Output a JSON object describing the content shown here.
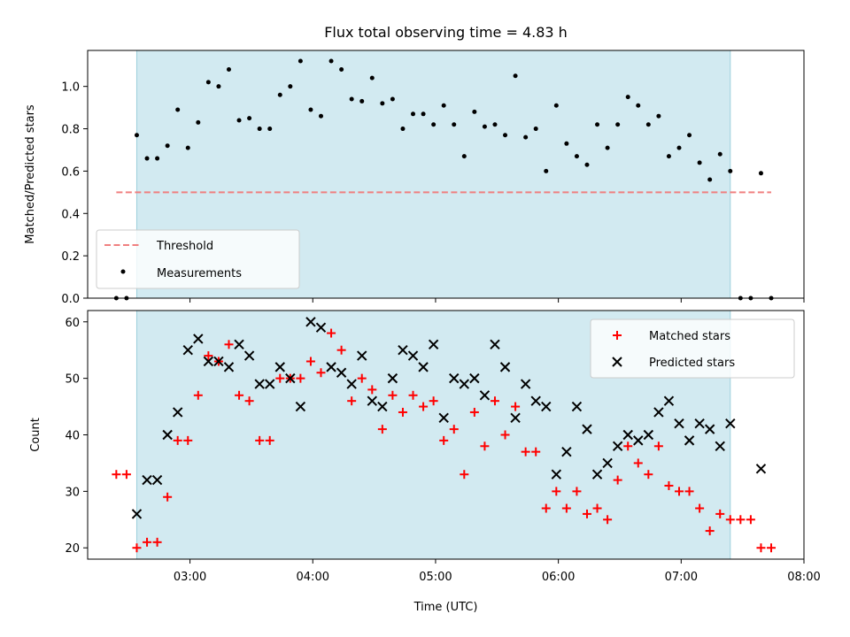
{
  "chart_data": [
    {
      "type": "scatter",
      "title": "Flux total observing time = 4.83 h",
      "ylabel": "Matched/Predicted stars",
      "xlim": [
        "02:10",
        "08:00"
      ],
      "ylim": [
        0,
        1.17
      ],
      "y_ticks": [
        "0.0",
        "0.2",
        "0.4",
        "0.6",
        "0.8",
        "1.0"
      ],
      "legend_location": "lower left",
      "shaded_interval": {
        "x": [
          "02:34",
          "07:24"
        ],
        "color": "#add8e6"
      },
      "threshold": {
        "name": "Threshold",
        "y": 0.5,
        "x": [
          "02:24",
          "07:44"
        ],
        "color": "#f08080",
        "style": "dashed"
      },
      "series": [
        {
          "name": "Measurements",
          "marker": "dot",
          "color": "#000000",
          "x": [
            "02:24",
            "02:29",
            "02:34",
            "02:39",
            "02:44",
            "02:49",
            "02:54",
            "02:59",
            "03:04",
            "03:09",
            "03:14",
            "03:19",
            "03:24",
            "03:29",
            "03:34",
            "03:39",
            "03:44",
            "03:49",
            "03:54",
            "03:59",
            "04:04",
            "04:09",
            "04:14",
            "04:19",
            "04:24",
            "04:29",
            "04:34",
            "04:39",
            "04:44",
            "04:49",
            "04:54",
            "04:59",
            "05:04",
            "05:09",
            "05:14",
            "05:19",
            "05:24",
            "05:29",
            "05:34",
            "05:39",
            "05:44",
            "05:49",
            "05:54",
            "05:59",
            "06:04",
            "06:09",
            "06:14",
            "06:19",
            "06:24",
            "06:29",
            "06:34",
            "06:39",
            "06:44",
            "06:49",
            "06:54",
            "06:59",
            "07:04",
            "07:09",
            "07:14",
            "07:19",
            "07:24",
            "07:29",
            "07:34",
            "07:39",
            "07:44"
          ],
          "y": [
            0,
            0,
            0.77,
            0.66,
            0.66,
            0.72,
            0.89,
            0.71,
            0.83,
            1.02,
            1.0,
            1.08,
            0.84,
            0.85,
            0.8,
            0.8,
            0.96,
            1.0,
            1.12,
            0.89,
            0.86,
            1.12,
            1.08,
            0.94,
            0.93,
            1.04,
            0.92,
            0.94,
            0.8,
            0.87,
            0.87,
            0.82,
            0.91,
            0.82,
            0.67,
            0.88,
            0.81,
            0.82,
            0.77,
            1.05,
            0.76,
            0.8,
            0.6,
            0.91,
            0.73,
            0.67,
            0.63,
            0.82,
            0.71,
            0.82,
            0.95,
            0.91,
            0.82,
            0.86,
            0.67,
            0.71,
            0.77,
            0.64,
            0.56,
            0.68,
            0.6,
            0,
            0,
            0.59,
            0
          ]
        }
      ]
    },
    {
      "type": "scatter",
      "xlabel": "Time (UTC)",
      "ylabel": "Count",
      "xlim": [
        "02:10",
        "08:00"
      ],
      "ylim": [
        18,
        62
      ],
      "x_ticks": [
        "03:00",
        "04:00",
        "05:00",
        "06:00",
        "07:00",
        "08:00"
      ],
      "y_ticks": [
        "20",
        "30",
        "40",
        "50",
        "60"
      ],
      "legend_location": "upper right",
      "shaded_interval": {
        "x": [
          "02:34",
          "07:24"
        ],
        "color": "#add8e6"
      },
      "series": [
        {
          "name": "Matched stars",
          "marker": "plus",
          "color": "#ff0000",
          "x": [
            "02:24",
            "02:29",
            "02:34",
            "02:39",
            "02:44",
            "02:49",
            "02:54",
            "02:59",
            "03:04",
            "03:09",
            "03:14",
            "03:19",
            "03:24",
            "03:29",
            "03:34",
            "03:39",
            "03:44",
            "03:49",
            "03:54",
            "03:59",
            "04:04",
            "04:09",
            "04:14",
            "04:19",
            "04:24",
            "04:29",
            "04:34",
            "04:39",
            "04:44",
            "04:49",
            "04:54",
            "04:59",
            "05:04",
            "05:09",
            "05:14",
            "05:19",
            "05:24",
            "05:29",
            "05:34",
            "05:39",
            "05:44",
            "05:49",
            "05:54",
            "05:59",
            "06:04",
            "06:09",
            "06:14",
            "06:19",
            "06:24",
            "06:29",
            "06:34",
            "06:39",
            "06:44",
            "06:49",
            "06:54",
            "06:59",
            "07:04",
            "07:09",
            "07:14",
            "07:19",
            "07:24",
            "07:29",
            "07:34",
            "07:39",
            "07:44"
          ],
          "y": [
            33,
            33,
            20,
            21,
            21,
            29,
            39,
            39,
            47,
            54,
            53,
            56,
            47,
            46,
            39,
            39,
            50,
            50,
            50,
            53,
            51,
            58,
            55,
            46,
            50,
            48,
            41,
            47,
            44,
            47,
            45,
            46,
            39,
            41,
            33,
            44,
            38,
            46,
            40,
            45,
            37,
            37,
            27,
            30,
            27,
            30,
            26,
            27,
            25,
            32,
            38,
            35,
            33,
            38,
            31,
            30,
            30,
            27,
            23,
            26,
            25,
            25,
            25,
            20,
            20
          ]
        },
        {
          "name": "Predicted stars",
          "marker": "x",
          "color": "#000000",
          "x": [
            "02:34",
            "02:39",
            "02:44",
            "02:49",
            "02:54",
            "02:59",
            "03:04",
            "03:09",
            "03:14",
            "03:19",
            "03:24",
            "03:29",
            "03:34",
            "03:39",
            "03:44",
            "03:49",
            "03:54",
            "03:59",
            "04:04",
            "04:09",
            "04:14",
            "04:19",
            "04:24",
            "04:29",
            "04:34",
            "04:39",
            "04:44",
            "04:49",
            "04:54",
            "04:59",
            "05:04",
            "05:09",
            "05:14",
            "05:19",
            "05:24",
            "05:29",
            "05:34",
            "05:39",
            "05:44",
            "05:49",
            "05:54",
            "05:59",
            "06:04",
            "06:09",
            "06:14",
            "06:19",
            "06:24",
            "06:29",
            "06:34",
            "06:39",
            "06:44",
            "06:49",
            "06:54",
            "06:59",
            "07:04",
            "07:09",
            "07:14",
            "07:19",
            "07:24",
            "07:39"
          ],
          "y": [
            26,
            32,
            32,
            40,
            44,
            55,
            57,
            53,
            53,
            52,
            56,
            54,
            49,
            49,
            52,
            50,
            45,
            60,
            59,
            52,
            51,
            49,
            54,
            46,
            45,
            50,
            55,
            54,
            52,
            56,
            43,
            50,
            49,
            50,
            47,
            56,
            52,
            43,
            49,
            46,
            45,
            33,
            37,
            45,
            41,
            33,
            35,
            38,
            40,
            39,
            40,
            44,
            46,
            42,
            39,
            42,
            41,
            38,
            42,
            34
          ]
        }
      ]
    }
  ]
}
